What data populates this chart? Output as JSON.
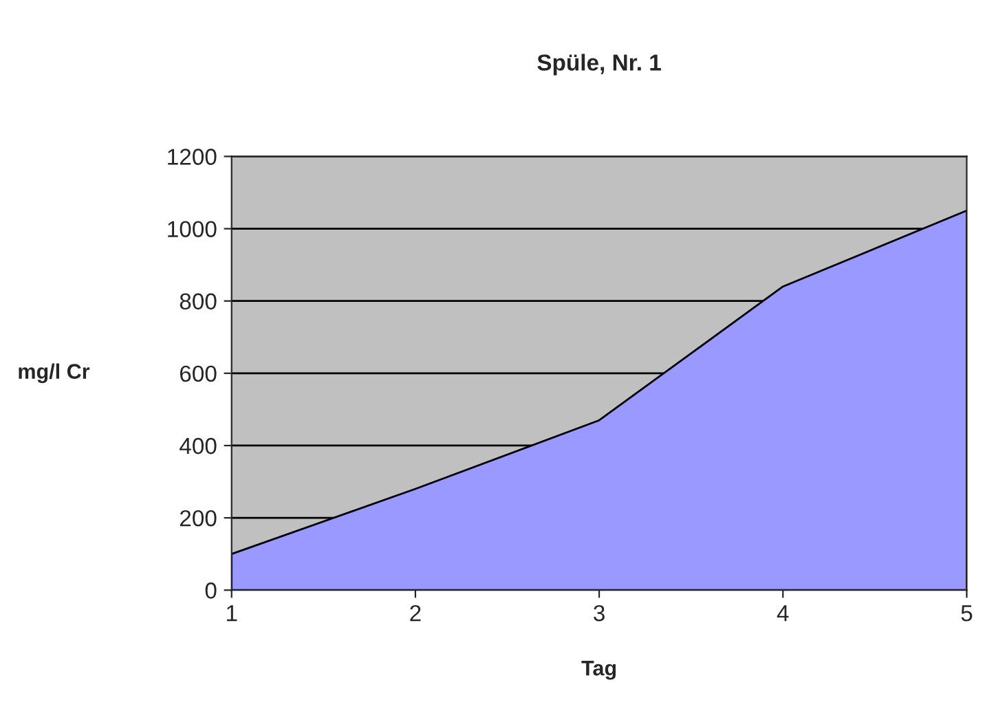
{
  "chart_data": {
    "type": "area",
    "title": "Spüle, Nr. 1",
    "xlabel": "Tag",
    "ylabel": "mg/l Cr",
    "x": [
      1,
      2,
      3,
      4,
      5
    ],
    "series": [
      {
        "color": "#9999ff",
        "values": [
          100,
          280,
          470,
          840,
          1050
        ]
      }
    ],
    "xlim": [
      1,
      5
    ],
    "xticks": [
      1,
      2,
      3,
      4,
      5
    ],
    "ylim": [
      0,
      1200
    ],
    "yticks": [
      0,
      200,
      400,
      600,
      800,
      1000,
      1200
    ],
    "grid": "y"
  }
}
